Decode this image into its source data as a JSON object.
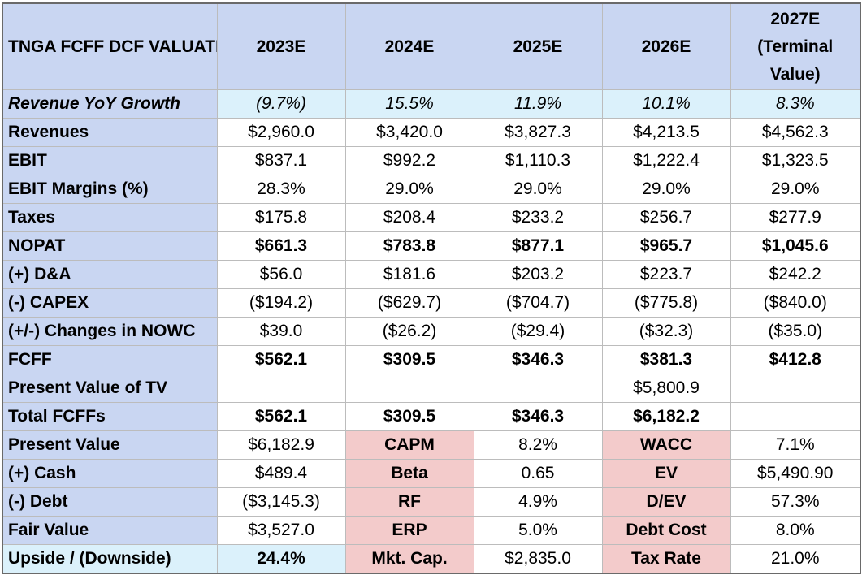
{
  "title": "TNGA FCFF DCF VALUATION",
  "years": [
    "2023E",
    "2024E",
    "2025E",
    "2026E",
    "2027E (Terminal Value)"
  ],
  "rows": {
    "growth": {
      "label": "Revenue YoY Growth",
      "values": [
        "(9.7%)",
        "15.5%",
        "11.9%",
        "10.1%",
        "8.3%"
      ]
    },
    "revenues": {
      "label": "Revenues",
      "values": [
        "$2,960.0",
        "$3,420.0",
        "$3,827.3",
        "$4,213.5",
        "$4,562.3"
      ]
    },
    "ebit": {
      "label": "EBIT",
      "values": [
        "$837.1",
        "$992.2",
        "$1,110.3",
        "$1,222.4",
        "$1,323.5"
      ]
    },
    "margins": {
      "label": "EBIT Margins (%)",
      "values": [
        "28.3%",
        "29.0%",
        "29.0%",
        "29.0%",
        "29.0%"
      ]
    },
    "taxes": {
      "label": "Taxes",
      "values": [
        "$175.8",
        "$208.4",
        "$233.2",
        "$256.7",
        "$277.9"
      ]
    },
    "nopat": {
      "label": "NOPAT",
      "values": [
        "$661.3",
        "$783.8",
        "$877.1",
        "$965.7",
        "$1,045.6"
      ]
    },
    "da": {
      "label": "(+) D&A",
      "values": [
        "$56.0",
        "$181.6",
        "$203.2",
        "$223.7",
        "$242.2"
      ]
    },
    "capex": {
      "label": "(-) CAPEX",
      "values": [
        "($194.2)",
        "($629.7)",
        "($704.7)",
        "($775.8)",
        "($840.0)"
      ]
    },
    "nowc": {
      "label": "(+/-) Changes in NOWC",
      "values": [
        "$39.0",
        "($26.2)",
        "($29.4)",
        "($32.3)",
        "($35.0)"
      ]
    },
    "fcff": {
      "label": "FCFF",
      "values": [
        "$562.1",
        "$309.5",
        "$346.3",
        "$381.3",
        "$412.8"
      ]
    },
    "pvtv": {
      "label": "Present Value of TV",
      "values": [
        "",
        "",
        "",
        "$5,800.9",
        ""
      ]
    },
    "total": {
      "label": "Total FCFFs",
      "values": [
        "$562.1",
        "$309.5",
        "$346.3",
        "$6,182.2",
        ""
      ]
    }
  },
  "summary": [
    {
      "label": "Present Value",
      "value": "$6,182.9",
      "k1": "CAPM",
      "v1": "8.2%",
      "k2": "WACC",
      "v2": "7.1%"
    },
    {
      "label": "(+) Cash",
      "value": "$489.4",
      "k1": "Beta",
      "v1": "0.65",
      "k2": "EV",
      "v2": "$5,490.90"
    },
    {
      "label": "(-) Debt",
      "value": "($3,145.3)",
      "k1": "RF",
      "v1": "4.9%",
      "k2": "D/EV",
      "v2": "57.3%"
    },
    {
      "label": "Fair Value",
      "value": "$3,527.0",
      "k1": "ERP",
      "v1": "5.0%",
      "k2": "Debt Cost",
      "v2": "8.0%"
    },
    {
      "label": "Upside / (Downside)",
      "value": "24.4%",
      "k1": "Mkt. Cap.",
      "v1": "$2,835.0",
      "k2": "Tax Rate",
      "v2": "21.0%"
    }
  ],
  "colors": {
    "header_blue": "#c9d6f2",
    "growth_cyan": "#dbf1fb",
    "param_pink": "#f3cbcb"
  }
}
